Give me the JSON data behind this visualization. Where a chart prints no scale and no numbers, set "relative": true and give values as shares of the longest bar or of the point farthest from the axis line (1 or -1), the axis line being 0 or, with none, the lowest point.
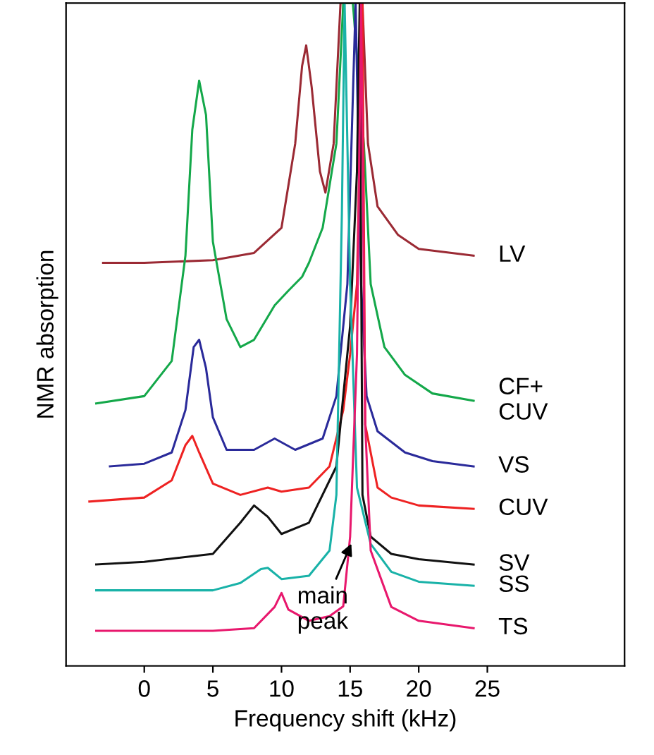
{
  "chart_data": {
    "type": "line",
    "relative": true,
    "xlabel": "Frequency shift (kHz)",
    "ylabel": "NMR absorption",
    "xlim": [
      -5.7,
      35
    ],
    "xticks": [
      0,
      5,
      10,
      15,
      20,
      25
    ],
    "grid": false,
    "legend": false,
    "annotations": [
      {
        "text": "main\npeak",
        "x": 15.2,
        "y": 0.19
      }
    ],
    "series": [
      {
        "name": "LV",
        "color": "#9b2a34",
        "x": [
          -3,
          0,
          5,
          8,
          10,
          11,
          11.5,
          11.8,
          12.2,
          12.8,
          13.2,
          13.8,
          14.3,
          15.9,
          16.3,
          17,
          18.5,
          20,
          24
        ],
        "values": [
          0.608,
          0.608,
          0.612,
          0.623,
          0.661,
          0.788,
          0.905,
          0.936,
          0.873,
          0.746,
          0.714,
          0.788,
          1,
          1,
          0.788,
          0.693,
          0.65,
          0.629,
          0.619
        ]
      },
      {
        "name": "CF+\nCUV",
        "color": "#14a84a",
        "x": [
          -3.5,
          0,
          2,
          3,
          3.5,
          4,
          4.5,
          5,
          6,
          7,
          8,
          9.5,
          10.5,
          11.5,
          12,
          13,
          14,
          14.5,
          15.2,
          16,
          16.5,
          17.5,
          19,
          21,
          24
        ],
        "values": [
          0.396,
          0.407,
          0.46,
          0.619,
          0.809,
          0.883,
          0.831,
          0.64,
          0.523,
          0.481,
          0.492,
          0.544,
          0.566,
          0.587,
          0.608,
          0.661,
          0.788,
          1,
          1,
          0.788,
          0.576,
          0.481,
          0.439,
          0.411,
          0.4
        ]
      },
      {
        "name": "VS",
        "color": "#2a2a9a",
        "x": [
          -2.5,
          0,
          2,
          3,
          3.6,
          4,
          4.5,
          5,
          6,
          8,
          9.5,
          11,
          13,
          14,
          14.8,
          15.4,
          15.8,
          16.2,
          17,
          19,
          21,
          24
        ],
        "values": [
          0.301,
          0.305,
          0.322,
          0.386,
          0.481,
          0.492,
          0.449,
          0.375,
          0.326,
          0.326,
          0.343,
          0.326,
          0.343,
          0.407,
          0.576,
          1,
          0.576,
          0.407,
          0.354,
          0.322,
          0.309,
          0.301
        ]
      },
      {
        "name": "CUV",
        "color": "#ee2222",
        "x": [
          -4,
          0,
          2,
          3,
          3.5,
          4,
          5,
          7,
          9,
          10,
          12,
          13.5,
          14.5,
          15,
          15.5,
          15.9,
          16.1,
          17,
          18,
          20,
          24
        ],
        "values": [
          0.248,
          0.254,
          0.28,
          0.333,
          0.347,
          0.322,
          0.275,
          0.258,
          0.269,
          0.263,
          0.269,
          0.301,
          0.386,
          0.47,
          0.576,
          1,
          0.364,
          0.269,
          0.254,
          0.242,
          0.237
        ]
      },
      {
        "name": "SV",
        "color": "#111111",
        "x": [
          -3.5,
          0,
          5,
          7,
          8,
          9,
          10,
          12,
          14,
          15,
          15.5,
          15.7,
          15.9,
          16.5,
          18,
          20,
          24
        ],
        "values": [
          0.153,
          0.157,
          0.169,
          0.216,
          0.242,
          0.225,
          0.199,
          0.216,
          0.301,
          0.513,
          0.746,
          1,
          0.258,
          0.195,
          0.169,
          0.161,
          0.153
        ]
      },
      {
        "name": "SS",
        "color": "#19b2a8",
        "x": [
          -3.5,
          0,
          5,
          7,
          8.5,
          9,
          10,
          12,
          13.5,
          14,
          14.4,
          14.6,
          15,
          15.5,
          16.5,
          18,
          20,
          24
        ],
        "values": [
          0.114,
          0.114,
          0.114,
          0.125,
          0.146,
          0.148,
          0.131,
          0.136,
          0.174,
          0.258,
          0.682,
          1,
          0.576,
          0.269,
          0.184,
          0.142,
          0.127,
          0.121
        ]
      },
      {
        "name": "TS",
        "color": "#e8186d",
        "x": [
          -3.5,
          0,
          5,
          8,
          9.5,
          10,
          10.5,
          12,
          13.5,
          14.5,
          15,
          15.5,
          15.8,
          16.1,
          16.5,
          18,
          20,
          24
        ],
        "values": [
          0.053,
          0.053,
          0.053,
          0.057,
          0.089,
          0.11,
          0.085,
          0.068,
          0.075,
          0.09,
          0.195,
          0.47,
          1,
          0.364,
          0.174,
          0.089,
          0.068,
          0.057
        ]
      }
    ]
  }
}
